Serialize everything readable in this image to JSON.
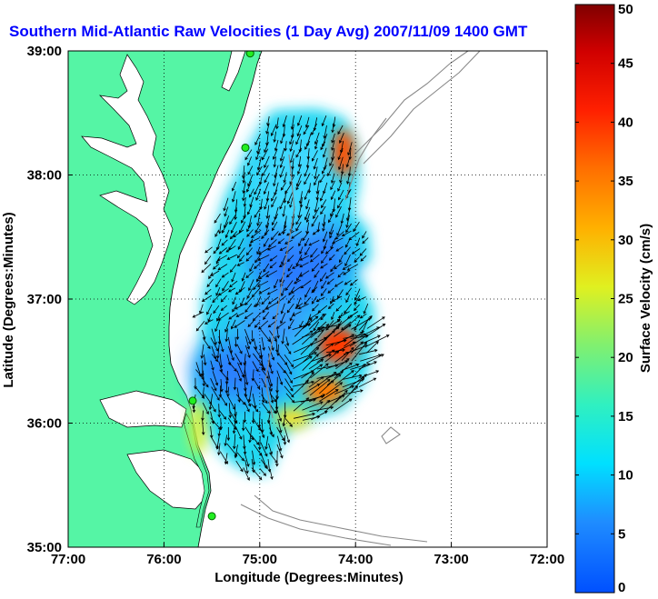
{
  "chart_data": {
    "type": "heatmap",
    "title": "Southern Mid-Atlantic Raw Velocities (1 Day Avg) 2007/11/09 1400 GMT",
    "xlabel": "Longitude (Degrees:Minutes)",
    "ylabel": "Latitude (Degrees:Minutes)",
    "x_ticks": [
      {
        "value": -77,
        "label": "77:00"
      },
      {
        "value": -76,
        "label": "76:00"
      },
      {
        "value": -75,
        "label": "75:00"
      },
      {
        "value": -74,
        "label": "74:00"
      },
      {
        "value": -73,
        "label": "73:00"
      },
      {
        "value": -72,
        "label": "72:00"
      }
    ],
    "y_ticks": [
      {
        "value": 35,
        "label": "35:00"
      },
      {
        "value": 36,
        "label": "36:00"
      },
      {
        "value": 37,
        "label": "37:00"
      },
      {
        "value": 38,
        "label": "38:00"
      },
      {
        "value": 39,
        "label": "39:00"
      }
    ],
    "xlim": [
      -77,
      -72
    ],
    "ylim": [
      35,
      39
    ],
    "grid": true,
    "colorbar": {
      "label": "Surface Velocity (cm/s)",
      "range": [
        0,
        50
      ],
      "ticks": [
        {
          "value": 0,
          "label": "0"
        },
        {
          "value": 5,
          "label": "5"
        },
        {
          "value": 10,
          "label": "10"
        },
        {
          "value": 15,
          "label": "15"
        },
        {
          "value": 20,
          "label": "20"
        },
        {
          "value": 25,
          "label": "25"
        },
        {
          "value": 30,
          "label": "30"
        },
        {
          "value": 35,
          "label": "35"
        },
        {
          "value": 40,
          "label": "40"
        },
        {
          "value": 45,
          "label": "45"
        },
        {
          "value": 50,
          "label": "50"
        }
      ]
    },
    "velocity_regions": [
      {
        "lon": -74.9,
        "lat": 37.9,
        "speed": 10
      },
      {
        "lon": -74.6,
        "lat": 37.3,
        "speed": 4
      },
      {
        "lon": -75.0,
        "lat": 36.4,
        "speed": 5
      },
      {
        "lon": -74.1,
        "lat": 38.3,
        "speed": 38
      },
      {
        "lon": -74.1,
        "lat": 36.7,
        "speed": 40
      },
      {
        "lon": -74.3,
        "lat": 36.2,
        "speed": 34
      },
      {
        "lon": -75.5,
        "lat": 36.0,
        "speed": 22
      }
    ],
    "stations": [
      {
        "lon": -75.1,
        "lat": 38.98
      },
      {
        "lon": -75.15,
        "lat": 38.22
      },
      {
        "lon": -75.7,
        "lat": 36.18
      },
      {
        "lon": -75.5,
        "lat": 35.25
      }
    ],
    "colors": {
      "land": "#55f5a5",
      "low": "#1f7bff",
      "high": "#ff3000",
      "title": "#0000ff"
    }
  }
}
